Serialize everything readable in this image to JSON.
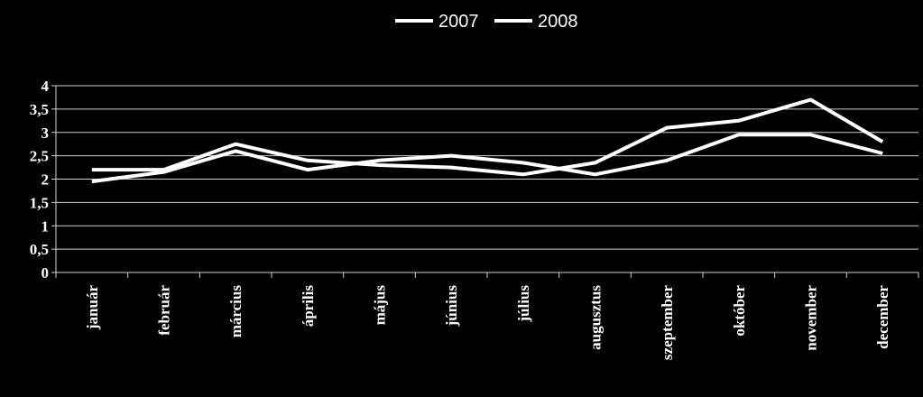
{
  "chart_data": {
    "type": "line",
    "categories": [
      "január",
      "február",
      "március",
      "április",
      "május",
      "június",
      "július",
      "augusztus",
      "szeptember",
      "október",
      "november",
      "december"
    ],
    "series": [
      {
        "name": "2007",
        "color": "#ffffff",
        "values": [
          2.2,
          2.2,
          2.75,
          2.4,
          2.3,
          2.25,
          2.1,
          2.35,
          3.1,
          3.25,
          3.7,
          2.8
        ]
      },
      {
        "name": "2008",
        "color": "#ffffff",
        "values": [
          1.95,
          2.15,
          2.6,
          2.2,
          2.4,
          2.5,
          2.35,
          2.1,
          2.4,
          2.95,
          2.95,
          2.55
        ]
      }
    ],
    "yticks": [
      "0",
      "0,5",
      "1",
      "1,5",
      "2",
      "2,5",
      "3",
      "3,5",
      "4"
    ],
    "ylim": [
      0,
      4
    ],
    "grid": true,
    "legend": "top"
  }
}
